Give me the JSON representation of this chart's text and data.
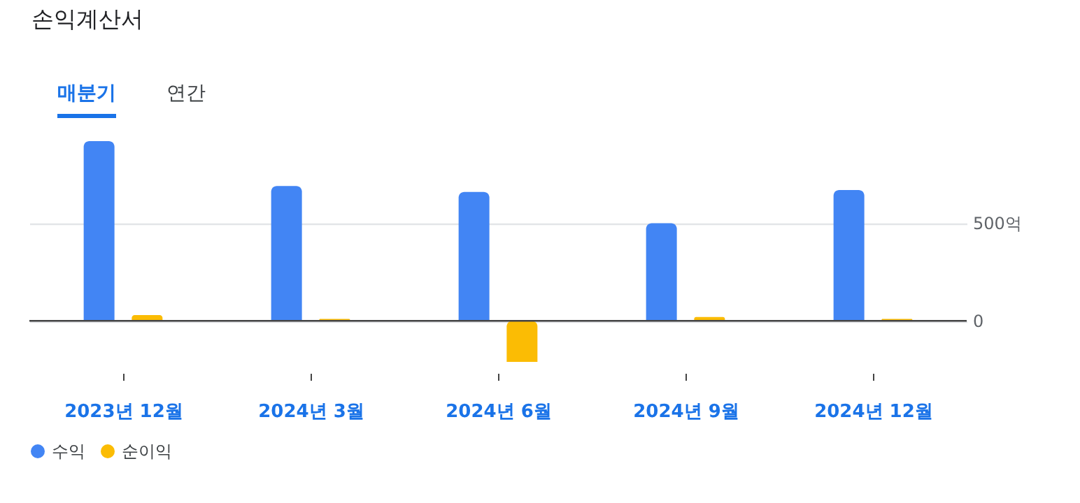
{
  "chart_data": {
    "type": "bar",
    "title": "손익계산서",
    "annotations": [
      "매분기",
      "연간"
    ],
    "categories": [
      "2023년 12월",
      "2024년 3월",
      "2024년 6월",
      "2024년 9월",
      "2024년 12월"
    ],
    "series": [
      {
        "name": "수익",
        "color": "#4285f4",
        "values": [
          920,
          690,
          660,
          500,
          670
        ]
      },
      {
        "name": "순이익",
        "color": "#fbbc04",
        "values": [
          30,
          10,
          -210,
          20,
          10
        ]
      }
    ],
    "ylim": [
      -210,
      920
    ],
    "yticks": [
      0,
      {
        "value": 500,
        "label": "500억"
      }
    ],
    "grid": "y",
    "legend": "bottom left"
  }
}
